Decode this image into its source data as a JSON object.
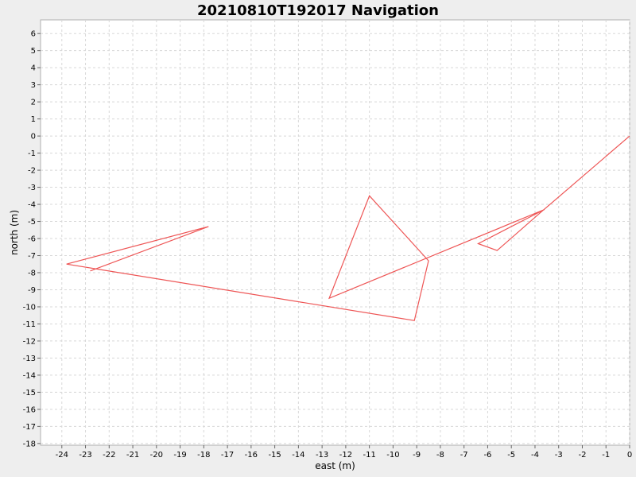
{
  "chart_data": {
    "type": "line",
    "title": "20210810T192017 Navigation",
    "xlabel": "east (m)",
    "ylabel": "north (m)",
    "xlim": [
      -24.9,
      0
    ],
    "ylim": [
      -18.1,
      6.8
    ],
    "x_ticks": [
      -24,
      -23,
      -22,
      -21,
      -20,
      -19,
      -18,
      -17,
      -16,
      -15,
      -14,
      -13,
      -12,
      -11,
      -10,
      -9,
      -8,
      -7,
      -6,
      -5,
      -4,
      -3,
      -2,
      -1,
      0
    ],
    "y_ticks": [
      6,
      5,
      4,
      3,
      2,
      1,
      0,
      -1,
      -2,
      -3,
      -4,
      -5,
      -6,
      -7,
      -8,
      -9,
      -10,
      -11,
      -12,
      -13,
      -14,
      -15,
      -16,
      -17,
      -18
    ],
    "grid": true,
    "line_color": "#ee5555",
    "series": [
      {
        "x": [
          0,
          -3.7,
          -5.6,
          -6.4,
          -3.6,
          -12.7,
          -11.0,
          -8.5,
          -9.1,
          -23.8,
          -17.8,
          -22.8
        ],
        "y": [
          0,
          -4.4,
          -6.7,
          -6.3,
          -4.3,
          -9.5,
          -3.5,
          -7.3,
          -10.8,
          -7.5,
          -5.3,
          -7.9
        ]
      }
    ]
  }
}
